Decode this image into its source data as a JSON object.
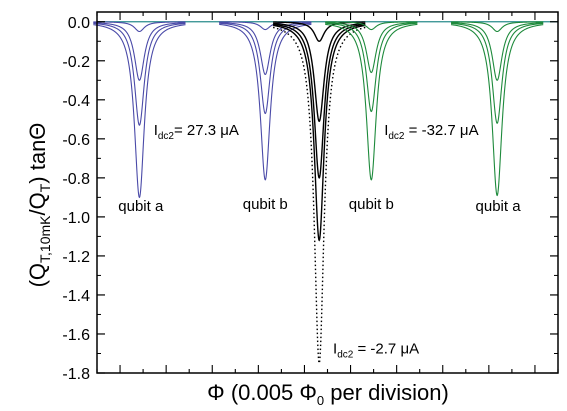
{
  "chart_data": {
    "type": "line",
    "xlabel": "Φ (0.005 Φ0 per division)",
    "xlabel_parts": {
      "pre": "Φ (0.005 Φ",
      "sub": "0",
      "post": " per division)"
    },
    "ylabel_parts": {
      "a": "(Q",
      "a_sub": "T,10mK",
      "b": "/Q",
      "b_sub": "T",
      "c": ") tanΘ"
    },
    "ylim": [
      -1.8,
      0.05
    ],
    "xlim": [
      0,
      100
    ],
    "y_ticks": [
      "0.0",
      "-0.2",
      "-0.4",
      "-0.6",
      "-0.8",
      "-1.0",
      "-1.2",
      "-1.4",
      "-1.6",
      "-1.8"
    ],
    "x_ticks_labeled": false,
    "grid": false,
    "colors": {
      "blue": "#4a4aa8",
      "green": "#1e8a3c",
      "black": "#000000",
      "baseline": "#2a8c8c"
    },
    "dip_width": 1.3,
    "series": [
      {
        "color": "blue",
        "style": "solid",
        "center": 9.2,
        "depths": [
          -0.9,
          -0.53,
          -0.3,
          -0.05
        ]
      },
      {
        "color": "blue",
        "style": "solid",
        "center": 36.5,
        "depths": [
          -0.81,
          -0.47,
          -0.27,
          -0.04
        ]
      },
      {
        "color": "black",
        "style": "solid",
        "center": 48.2,
        "depths": [
          -1.12,
          -0.8,
          -0.51,
          -0.1
        ]
      },
      {
        "color": "black",
        "style": "dotted",
        "center": 48.2,
        "depths": [
          -1.75
        ]
      },
      {
        "color": "green",
        "style": "solid",
        "center": 59.5,
        "depths": [
          -0.81,
          -0.46,
          -0.26,
          -0.04
        ]
      },
      {
        "color": "green",
        "style": "solid",
        "center": 86.8,
        "depths": [
          -0.89,
          -0.52,
          -0.3,
          -0.05
        ]
      }
    ],
    "annotations": [
      {
        "name": "qubit-a-left",
        "text": "qubit  a",
        "x": 9.5,
        "y": -0.97
      },
      {
        "name": "qubit-b-left",
        "text": "qubit  b",
        "x": 36.5,
        "y": -0.96
      },
      {
        "name": "qubit-b-right",
        "text": "qubit  b",
        "x": 59.5,
        "y": -0.96
      },
      {
        "name": "qubit-a-right",
        "text": "qubit  a",
        "x": 87,
        "y": -0.97
      },
      {
        "name": "idc2-27",
        "pre": "I",
        "sub": "dc2",
        "post": "= 27.3 μA",
        "x": 12.3,
        "y": -0.58
      },
      {
        "name": "idc2-minus32",
        "pre": "I",
        "sub": "dc2",
        "post": " = -32.7 μA",
        "x": 62.3,
        "y": -0.58
      },
      {
        "name": "idc2-minus2",
        "pre": "I",
        "sub": "dc2",
        "post": " = -2.7 μA",
        "x": 51.2,
        "y": -1.7
      }
    ]
  }
}
